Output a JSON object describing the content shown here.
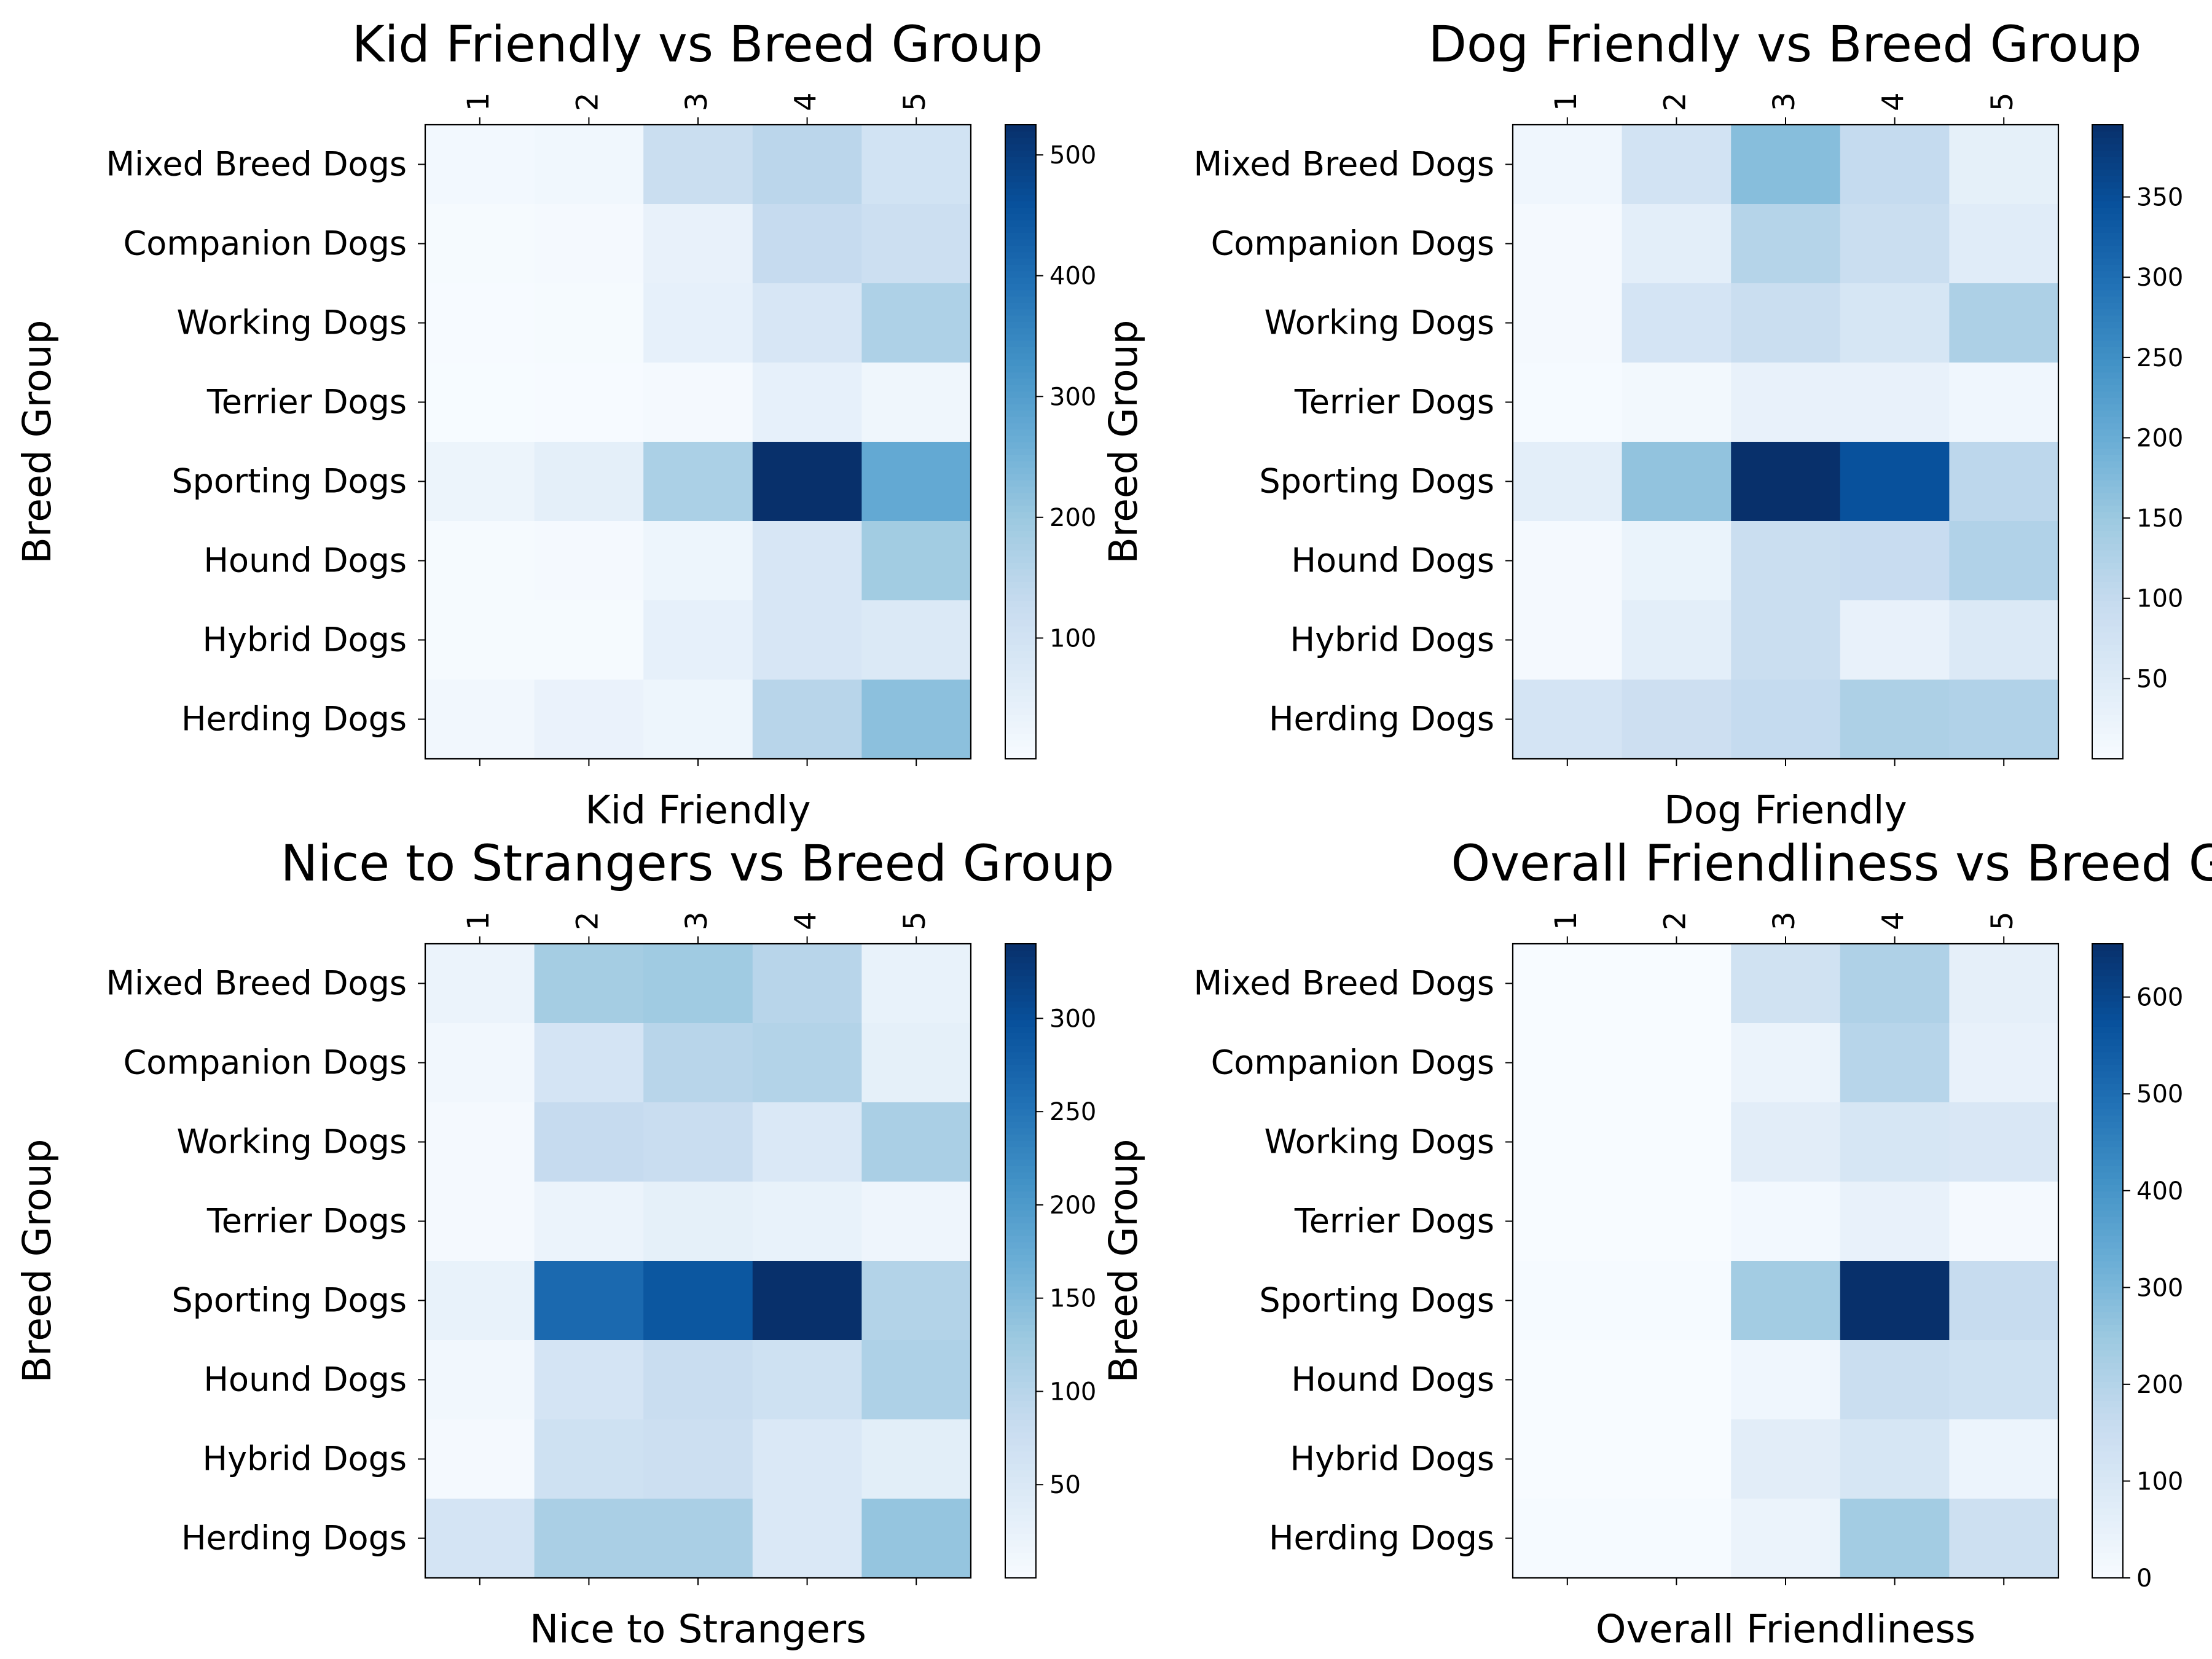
{
  "chart_data": [
    {
      "type": "heatmap",
      "title": "Kid Friendly vs Breed Group",
      "xlabel": "Kid Friendly",
      "ylabel": "Breed Group",
      "x_categories": [
        "1",
        "2",
        "3",
        "4",
        "5"
      ],
      "y_categories": [
        "Mixed Breed Dogs",
        "Companion Dogs",
        "Working Dogs",
        "Terrier Dogs",
        "Sporting Dogs",
        "Hound Dogs",
        "Hybrid Dogs",
        "Herding Dogs"
      ],
      "values": [
        [
          12,
          18,
          120,
          150,
          100
        ],
        [
          5,
          8,
          40,
          130,
          115
        ],
        [
          3,
          5,
          45,
          85,
          170
        ],
        [
          2,
          3,
          8,
          45,
          22
        ],
        [
          30,
          50,
          175,
          525,
          275
        ],
        [
          5,
          8,
          25,
          85,
          190
        ],
        [
          5,
          5,
          45,
          85,
          75
        ],
        [
          15,
          35,
          25,
          155,
          220
        ]
      ],
      "colorbar": {
        "min": 0,
        "max": 525,
        "ticks": [
          100,
          200,
          300,
          400,
          500
        ]
      },
      "colormap": "Blues"
    },
    {
      "type": "heatmap",
      "title": "Dog Friendly vs Breed Group",
      "xlabel": "Dog Friendly",
      "ylabel": "Breed Group",
      "x_categories": [
        "1",
        "2",
        "3",
        "4",
        "5"
      ],
      "y_categories": [
        "Mixed Breed Dogs",
        "Companion Dogs",
        "Working Dogs",
        "Terrier Dogs",
        "Sporting Dogs",
        "Hound Dogs",
        "Hybrid Dogs",
        "Herding Dogs"
      ],
      "values": [
        [
          15,
          75,
          170,
          100,
          35
        ],
        [
          5,
          40,
          120,
          90,
          45
        ],
        [
          5,
          70,
          90,
          65,
          130
        ],
        [
          3,
          10,
          30,
          30,
          15
        ],
        [
          40,
          160,
          395,
          345,
          110
        ],
        [
          5,
          25,
          90,
          95,
          125
        ],
        [
          5,
          40,
          90,
          30,
          55
        ],
        [
          70,
          85,
          100,
          130,
          125
        ]
      ],
      "colorbar": {
        "min": 0,
        "max": 395,
        "ticks": [
          50,
          100,
          150,
          200,
          250,
          300,
          350
        ]
      },
      "colormap": "Blues"
    },
    {
      "type": "heatmap",
      "title": "Nice to Strangers vs Breed Group",
      "xlabel": "Nice to Strangers",
      "ylabel": "Breed Group",
      "x_categories": [
        "1",
        "2",
        "3",
        "4",
        "5"
      ],
      "y_categories": [
        "Mixed Breed Dogs",
        "Companion Dogs",
        "Working Dogs",
        "Terrier Dogs",
        "Sporting Dogs",
        "Hound Dogs",
        "Hybrid Dogs",
        "Herding Dogs"
      ],
      "values": [
        [
          20,
          120,
          125,
          100,
          25
        ],
        [
          10,
          60,
          100,
          105,
          30
        ],
        [
          5,
          85,
          80,
          50,
          115
        ],
        [
          5,
          20,
          30,
          25,
          15
        ],
        [
          25,
          265,
          290,
          340,
          105
        ],
        [
          10,
          60,
          80,
          70,
          110
        ],
        [
          5,
          70,
          75,
          50,
          35
        ],
        [
          60,
          115,
          115,
          50,
          135
        ]
      ],
      "colorbar": {
        "min": 0,
        "max": 340,
        "ticks": [
          50,
          100,
          150,
          200,
          250,
          300
        ]
      },
      "colormap": "Blues"
    },
    {
      "type": "heatmap",
      "title": "Overall Friendliness vs Breed Group",
      "xlabel": "Overall Friendliness",
      "ylabel": "Breed Group",
      "x_categories": [
        "1",
        "2",
        "3",
        "4",
        "5"
      ],
      "y_categories": [
        "Mixed Breed Dogs",
        "Companion Dogs",
        "Working Dogs",
        "Terrier Dogs",
        "Sporting Dogs",
        "Hound Dogs",
        "Hybrid Dogs",
        "Herding Dogs"
      ],
      "values": [
        [
          0,
          0,
          130,
          210,
          60
        ],
        [
          0,
          0,
          40,
          195,
          50
        ],
        [
          0,
          0,
          70,
          110,
          100
        ],
        [
          0,
          0,
          15,
          50,
          10
        ],
        [
          5,
          5,
          235,
          655,
          160
        ],
        [
          0,
          0,
          25,
          150,
          135
        ],
        [
          0,
          0,
          70,
          110,
          35
        ],
        [
          5,
          5,
          40,
          235,
          140
        ]
      ],
      "colorbar": {
        "min": 0,
        "max": 655,
        "ticks": [
          0,
          100,
          200,
          300,
          400,
          500,
          600
        ]
      },
      "colormap": "Blues"
    }
  ]
}
